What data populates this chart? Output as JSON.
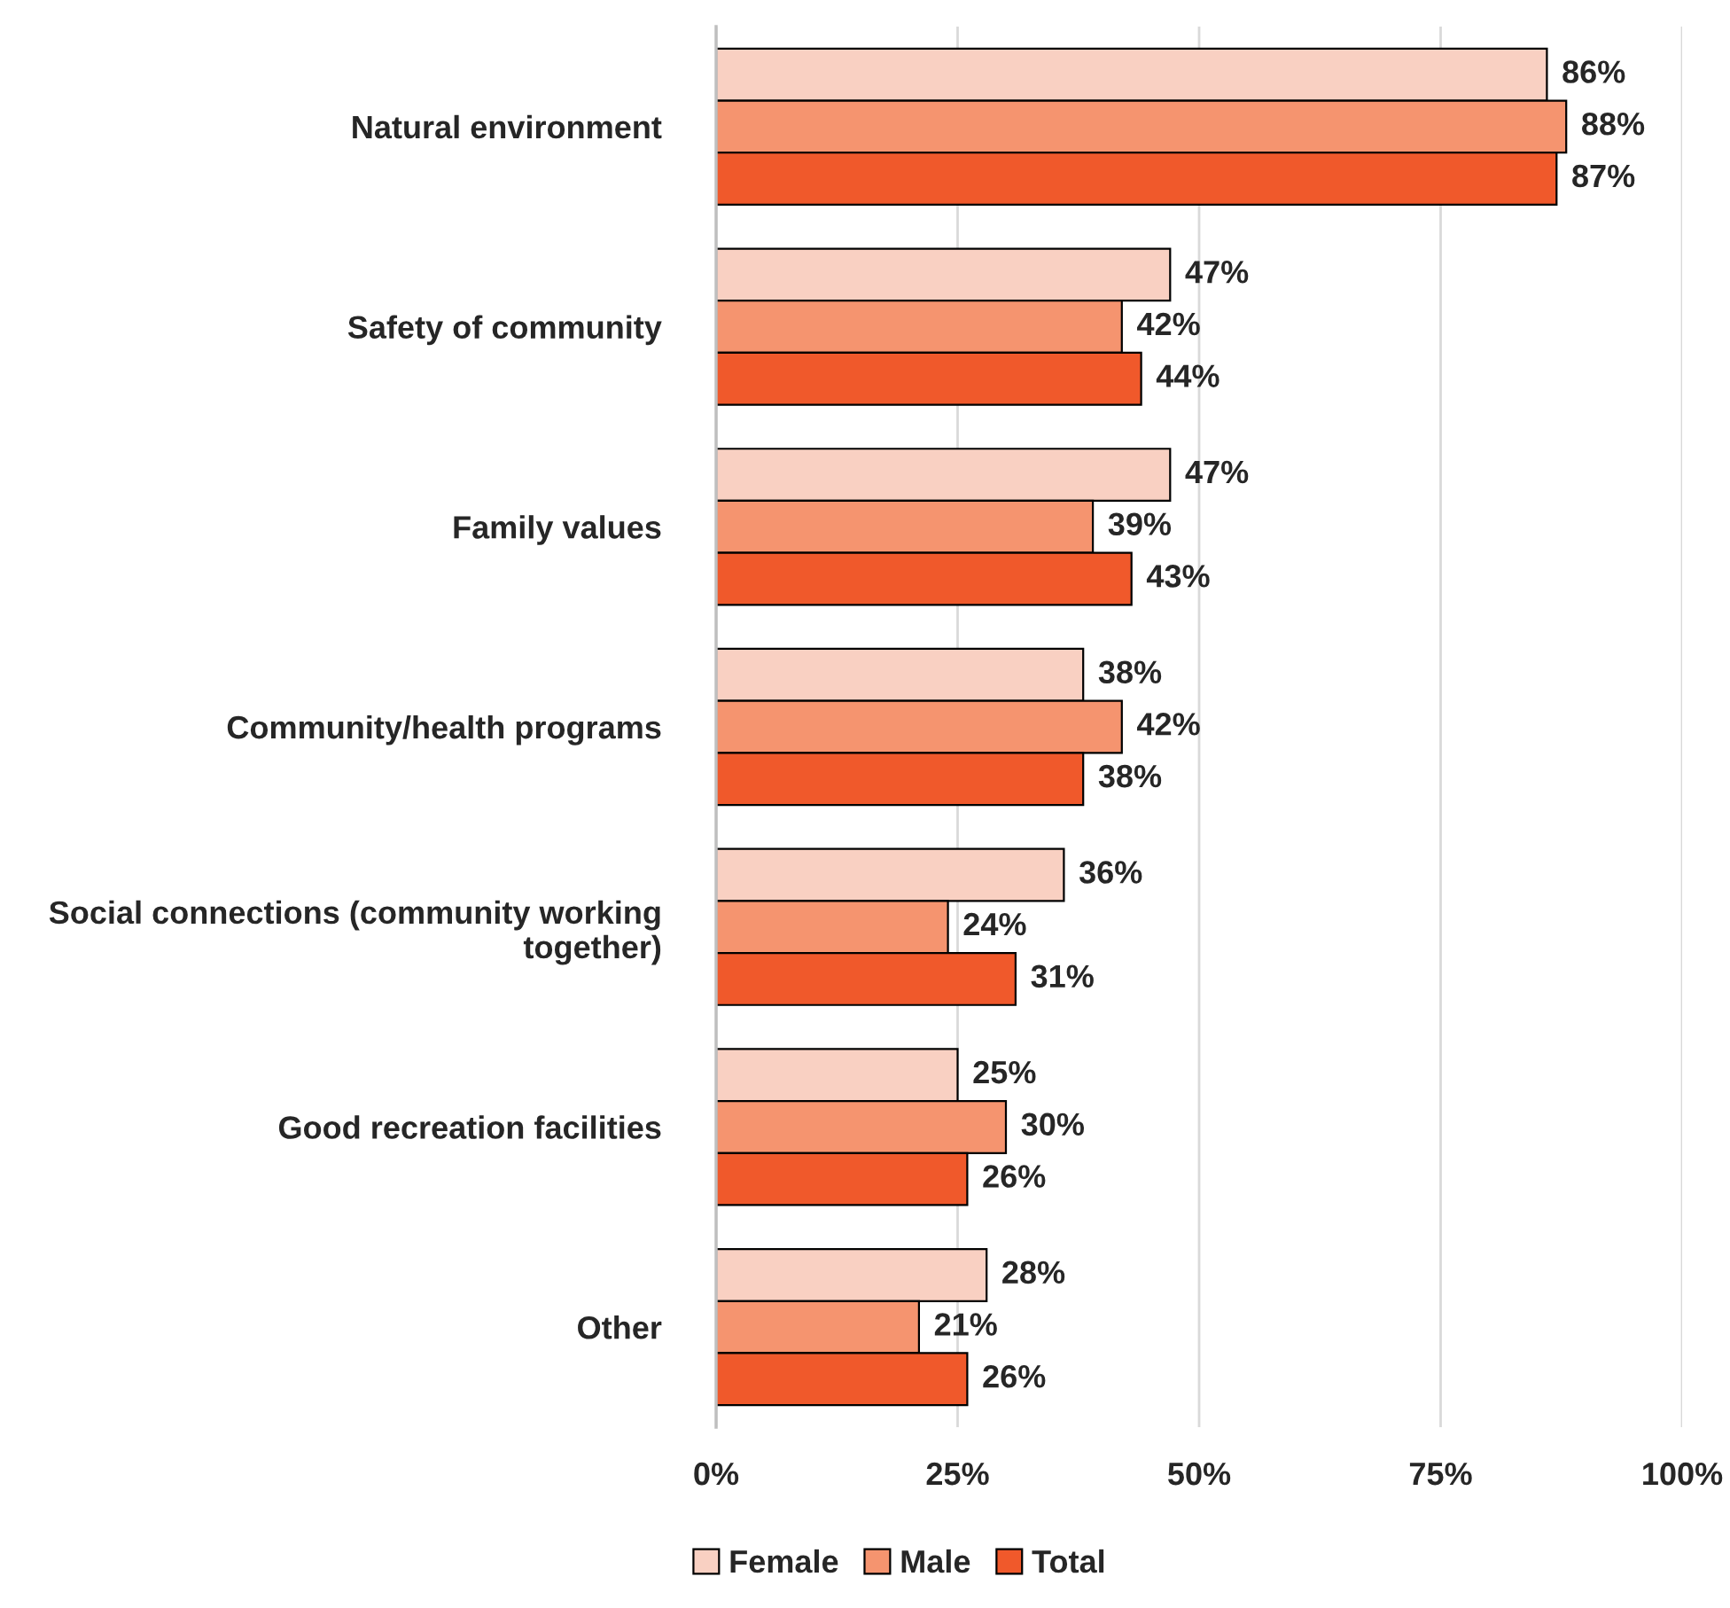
{
  "chart_data": {
    "type": "bar",
    "orientation": "horizontal",
    "categories": [
      "Natural environment",
      "Safety of community",
      "Family values",
      "Community/health programs",
      "Social connections (community working\ntogether)",
      "Good recreation facilities",
      "Other"
    ],
    "series": [
      {
        "name": "Female",
        "color": "#f9d0c2",
        "values": [
          86,
          47,
          47,
          38,
          36,
          25,
          28
        ],
        "value_labels": [
          "86%",
          "47%",
          "47%",
          "38%",
          "36%",
          "25%",
          "28%"
        ]
      },
      {
        "name": "Male",
        "color": "#f5946f",
        "values": [
          88,
          42,
          39,
          42,
          24,
          30,
          21
        ],
        "value_labels": [
          "88%",
          "42%",
          "39%",
          "42%",
          "24%",
          "30%",
          "21%"
        ]
      },
      {
        "name": "Total",
        "color": "#f0592b",
        "values": [
          87,
          44,
          43,
          38,
          31,
          26,
          26
        ],
        "value_labels": [
          "87%",
          "44%",
          "43%",
          "38%",
          "31%",
          "26%",
          "26%"
        ]
      }
    ],
    "xlim": [
      0,
      100
    ],
    "xticks": [
      {
        "value": 0,
        "label": "0%"
      },
      {
        "value": 25,
        "label": "25%"
      },
      {
        "value": 50,
        "label": "50%"
      },
      {
        "value": 75,
        "label": "75%"
      },
      {
        "value": 100,
        "label": "100%"
      }
    ],
    "grid": "x",
    "legend": "bottom"
  }
}
